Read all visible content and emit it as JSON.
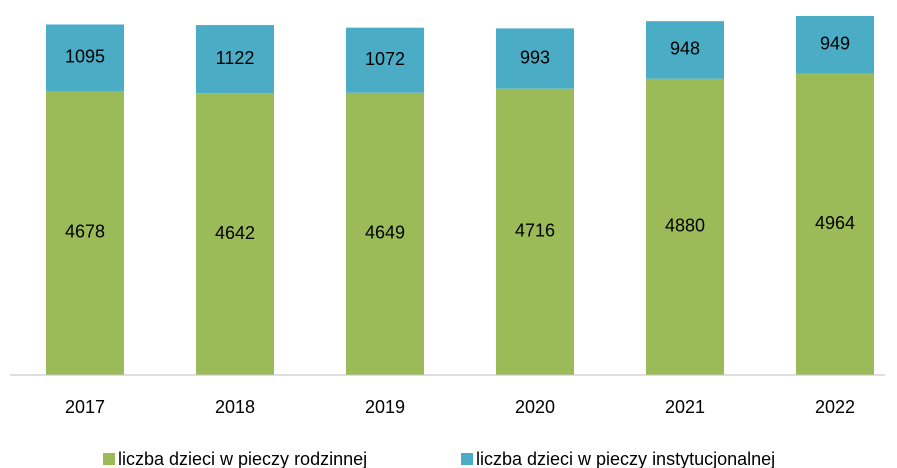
{
  "chart_data": {
    "type": "stacked_bar",
    "categories": [
      "2017",
      "2018",
      "2019",
      "2020",
      "2021",
      "2022"
    ],
    "series": [
      {
        "name": "liczba dzieci w pieczy rodzinnej",
        "color": "#9bbb59",
        "values": [
          4678,
          4642,
          4649,
          4716,
          4880,
          4964
        ]
      },
      {
        "name": "liczba dzieci w pieczy instytucjonalnej",
        "color": "#4bacc6",
        "values": [
          1095,
          1122,
          1072,
          993,
          948,
          949
        ]
      }
    ],
    "legend": "bottom"
  }
}
